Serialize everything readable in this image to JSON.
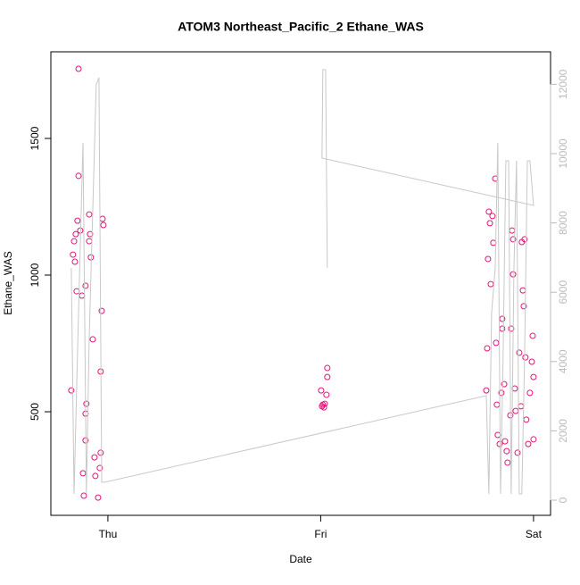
{
  "chart_data": {
    "type": "scatter",
    "title": "ATOM3 Northeast_Pacific_2 Ethane_WAS",
    "x_label": "Date",
    "y_label": "Ethane_WAS",
    "xlim": [
      -0.268,
      2.08
    ],
    "xticks": [
      {
        "value": 0,
        "label": "Thu"
      },
      {
        "value": 1,
        "label": "Fri"
      },
      {
        "value": 2,
        "label": "Sat"
      }
    ],
    "ylim": [
      121,
      1817
    ],
    "yticks": [
      500,
      1000,
      1500
    ],
    "y2lim": [
      -438,
      12938
    ],
    "y2ticks": [
      0,
      2000,
      4000,
      6000,
      8000,
      10000,
      12000
    ],
    "series": [
      {
        "type": "scatter",
        "color": "#e0147a",
        "x": [
          -0.172,
          -0.138,
          -0.138,
          -0.143,
          -0.151,
          -0.159,
          -0.164,
          -0.155,
          -0.147,
          -0.122,
          -0.105,
          -0.117,
          -0.113,
          -0.105,
          -0.101,
          -0.105,
          -0.088,
          -0.084,
          -0.08,
          -0.071,
          -0.063,
          -0.059,
          -0.046,
          -0.038,
          -0.034,
          -0.034,
          -0.029,
          -0.025,
          -0.021,
          -0.088,
          -0.13,
          1.002,
          1.01,
          1.015,
          1.019,
          1.027,
          1.031,
          1.031,
          1.006,
          1.778,
          1.782,
          1.786,
          1.79,
          1.795,
          1.807,
          1.811,
          1.82,
          1.824,
          1.828,
          1.832,
          1.841,
          1.849,
          1.853,
          1.862,
          1.866,
          1.874,
          1.878,
          1.891,
          1.895,
          1.899,
          1.904,
          1.912,
          1.916,
          1.925,
          1.933,
          1.941,
          1.945,
          1.95,
          1.954,
          1.958,
          1.962,
          1.966,
          1.975,
          1.983,
          1.992,
          1.996,
          2.0,
          2.0,
          1.853,
          1.904,
          1.799
        ],
        "values": [
          578,
          1755,
          1363,
          1199,
          1150,
          1124,
          1075,
          1049,
          941,
          925,
          961,
          275,
          193,
          395,
          529,
          493,
          1222,
          1150,
          1065,
          765,
          333,
          265,
          186,
          294,
          350,
          647,
          869,
          1206,
          1183,
          1124,
          1163,
          578,
          526,
          516,
          529,
          562,
          627,
          660,
          520,
          578,
          732,
          1059,
          1232,
          1190,
          1216,
          1118,
          1353,
          752,
          526,
          415,
          382,
          569,
          840,
          601,
          392,
          356,
          314,
          487,
          804,
          1163,
          1131,
          585,
          503,
          350,
          716,
          520,
          1121,
          944,
          886,
          1131,
          699,
          471,
          382,
          569,
          683,
          778,
          399,
          627,
          804,
          1003,
          967
        ]
      },
      {
        "type": "line",
        "axis": "y2",
        "color": "#c8c8c8",
        "x": [
          -0.172,
          -0.159,
          -0.138,
          -0.117,
          -0.101,
          -0.088,
          -0.067,
          -0.055,
          -0.042,
          -0.029,
          -0.017,
          1.778,
          1.79,
          1.803,
          1.82,
          1.832,
          1.845,
          1.857,
          1.87,
          1.883,
          1.895,
          1.908,
          1.92,
          1.933,
          1.945,
          1.958,
          1.971,
          1.983,
          2.0,
          1.006,
          1.01,
          1.023,
          1.031
        ],
        "values": [
          6701,
          180,
          5412,
          10309,
          180,
          4639,
          9278,
          11985,
          12191,
          515,
          515,
          3015,
          180,
          5412,
          6701,
          10309,
          180,
          4124,
          9794,
          9794,
          180,
          6701,
          9794,
          180,
          180,
          4124,
          9794,
          9794,
          8505,
          9871,
          12423,
          12423,
          6701
        ]
      }
    ]
  }
}
